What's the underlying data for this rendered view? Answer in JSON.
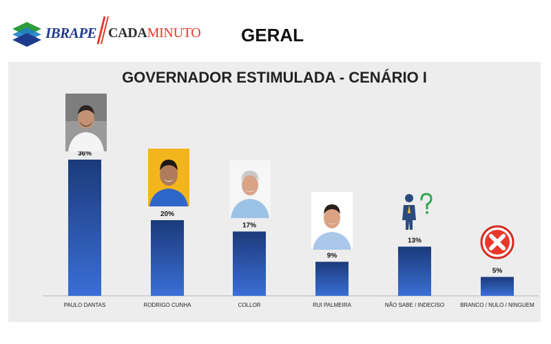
{
  "header": {
    "logo_ibrape": "IBRAPE",
    "logo_cada": "CADA",
    "logo_minuto": "MINUTO",
    "page_title": "GERAL"
  },
  "colors": {
    "bar_top": "#1b3a7a",
    "bar_bottom": "#3a6fd6",
    "panel_bg": "#ededed",
    "brand_blue": "#1f3b8c",
    "brand_red": "#e23a2c"
  },
  "chart_data": {
    "type": "bar",
    "title": "GOVERNADOR ESTIMULADA - CENÁRIO I",
    "categories": [
      "PAULO DANTAS",
      "RODRIGO CUNHA",
      "COLLOR",
      "RUI PALMEIRA",
      "NÃO SABE / INDECISO",
      "BRANCO / NULO / NINGUEM"
    ],
    "values": [
      36,
      20,
      17,
      9,
      13,
      5
    ],
    "data_labels": [
      "36%",
      "20%",
      "17%",
      "9%",
      "13%",
      "5%"
    ],
    "ylim": [
      0,
      40
    ],
    "grid": false,
    "legend": "none",
    "icons": [
      "candidate-photo",
      "candidate-photo",
      "candidate-photo",
      "candidate-photo",
      "undecided-person-icon",
      "red-x-icon"
    ]
  }
}
